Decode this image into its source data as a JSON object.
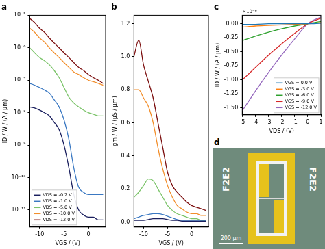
{
  "chart_data": [
    {
      "type": "line",
      "title": "a",
      "xlabel": "VGS / (V)",
      "ylabel": "ID / W / (A / μm)",
      "log": "y",
      "grid": false,
      "legend": "lower left",
      "xlim": [
        -12,
        3.5
      ],
      "xticks": [
        -10,
        -5,
        0
      ],
      "ylim": [
        3e-12,
        1e-05
      ],
      "yticks": [
        {
          "value": 1e-11,
          "label": "10⁻¹¹"
        },
        {
          "value": 1e-10,
          "label": "10⁻¹⁰"
        },
        {
          "value": 1e-09,
          "label": "10⁻⁹"
        },
        {
          "value": 1e-08,
          "label": "10⁻⁸"
        },
        {
          "value": 1e-07,
          "label": "10⁻⁷"
        },
        {
          "value": 1e-06,
          "label": "10⁻⁶"
        },
        {
          "value": 1e-05,
          "label": "10⁻⁵"
        }
      ],
      "x": [
        -12,
        -11,
        -10,
        -9,
        -8,
        -7,
        -6,
        -5,
        -4,
        -3,
        -2,
        -1,
        0,
        1,
        2,
        3
      ],
      "series": [
        {
          "name": "VDS = -0.2 V",
          "color": "#1a1f5e",
          "values": [
            1.5e-08,
            1.4e-08,
            1.2e-08,
            1e-08,
            8e-09,
            5e-09,
            3e-09,
            1e-09,
            2e-10,
            3e-11,
            1e-11,
            7e-12,
            6e-12,
            6e-12,
            5e-12,
            5e-12
          ]
        },
        {
          "name": "VDS = -1.0 V",
          "color": "#3a78c2",
          "values": [
            8e-08,
            7e-08,
            6e-08,
            5e-08,
            4e-08,
            2.5e-08,
            1.5e-08,
            6e-09,
            1.5e-09,
            2e-10,
            5e-11,
            3.5e-11,
            3e-11,
            3e-11,
            3e-11,
            3e-11
          ]
        },
        {
          "name": "VDS = -5.0 V",
          "color": "#7cc46a",
          "values": [
            1e-06,
            7e-07,
            5e-07,
            4e-07,
            3e-07,
            2e-07,
            1.2e-07,
            6e-08,
            3e-08,
            2e-08,
            1.5e-08,
            1.2e-08,
            1e-08,
            9e-09,
            8e-09,
            8e-09
          ]
        },
        {
          "name": "VDS = -10.0 V",
          "color": "#f28e2b",
          "values": [
            4e-06,
            3e-06,
            2e-06,
            1.5e-06,
            1e-06,
            7e-07,
            5e-07,
            3.5e-07,
            2.5e-07,
            1.8e-07,
            1.5e-07,
            1.2e-07,
            1e-07,
            9e-08,
            8e-08,
            7e-08
          ]
        },
        {
          "name": "VDS = -12.0 V",
          "color": "#7b0d0d",
          "values": [
            8e-06,
            6e-06,
            4e-06,
            3e-06,
            2e-06,
            1.4e-06,
            1e-06,
            7e-07,
            5e-07,
            3.5e-07,
            2.5e-07,
            2e-07,
            1.5e-07,
            1.2e-07,
            1e-07,
            8e-08
          ]
        }
      ]
    },
    {
      "type": "line",
      "title": "b",
      "xlabel": "VGS / (V)",
      "ylabel": "gm / W / (μS / μm)",
      "grid": false,
      "xlim": [
        -12,
        3.5
      ],
      "xticks": [
        -10,
        -5,
        0
      ],
      "ylim": [
        -0.03,
        1.25
      ],
      "yticks": [
        {
          "value": 0,
          "label": "0.0"
        },
        {
          "value": 0.2,
          "label": "0.2"
        },
        {
          "value": 0.4,
          "label": "0.4"
        },
        {
          "value": 0.6,
          "label": "0.6"
        },
        {
          "value": 0.8,
          "label": "0.8"
        },
        {
          "value": 1.0,
          "label": "1.0"
        },
        {
          "value": 1.2,
          "label": "1.2"
        }
      ],
      "x": [
        -12,
        -11,
        -10,
        -9,
        -8,
        -7,
        -6,
        -5,
        -4,
        -3,
        -2,
        -1,
        0,
        1,
        2,
        3
      ],
      "series": [
        {
          "name": "VDS = -0.2 V",
          "color": "#1a1f5e",
          "values": [
            0.01,
            0.01,
            0.01,
            0.015,
            0.02,
            0.02,
            0.02,
            0.015,
            0.01,
            0.01,
            0.005,
            0.005,
            0.005,
            0.005,
            0.005,
            0.005
          ]
        },
        {
          "name": "VDS = -1.0 V",
          "color": "#3a78c2",
          "values": [
            0.02,
            0.03,
            0.04,
            0.045,
            0.05,
            0.05,
            0.045,
            0.035,
            0.025,
            0.015,
            0.01,
            0.01,
            0.01,
            0.01,
            0.01,
            0.01
          ]
        },
        {
          "name": "VDS = -5.0 V",
          "color": "#7cc46a",
          "values": [
            0.15,
            0.18,
            0.22,
            0.26,
            0.25,
            0.2,
            0.15,
            0.1,
            0.07,
            0.05,
            0.04,
            0.03,
            0.02,
            0.02,
            0.01,
            0.01
          ]
        },
        {
          "name": "VDS = -10.0 V",
          "color": "#f28e2b",
          "values": [
            0.8,
            0.8,
            0.75,
            0.7,
            0.6,
            0.45,
            0.32,
            0.22,
            0.15,
            0.1,
            0.08,
            0.06,
            0.05,
            0.05,
            0.04,
            0.04
          ]
        },
        {
          "name": "VDS = -12.0 V",
          "color": "#7b0d0d",
          "values": [
            1.0,
            1.1,
            0.95,
            0.85,
            0.75,
            0.6,
            0.45,
            0.3,
            0.22,
            0.18,
            0.15,
            0.12,
            0.1,
            0.09,
            0.08,
            0.07
          ]
        }
      ]
    },
    {
      "type": "line",
      "title": "c",
      "xlabel": "VDS / (V)",
      "ylabel": "ID / W / (A / μm)",
      "annotations": [
        "×10⁻⁶"
      ],
      "grid": false,
      "legend": "lower right",
      "xlim": [
        -5,
        1
      ],
      "xticks": [
        -5,
        -4,
        -3,
        -2,
        -1,
        0,
        1
      ],
      "ylim": [
        -1.62,
        0.15
      ],
      "yticks": [
        {
          "value": -1.5,
          "label": "-1.50"
        },
        {
          "value": -1.25,
          "label": "-1.25"
        },
        {
          "value": -1.0,
          "label": "-1.00"
        },
        {
          "value": -0.75,
          "label": "-0.75"
        },
        {
          "value": -0.5,
          "label": "-0.50"
        },
        {
          "value": -0.25,
          "label": "-0.25"
        },
        {
          "value": 0,
          "label": "0.00"
        }
      ],
      "x": [
        -5,
        -4,
        -3,
        -2,
        -1,
        0,
        1
      ],
      "series": [
        {
          "name": "VGS = 0.0 V",
          "color": "#1f77b4",
          "values": [
            -0.01,
            -0.01,
            0,
            0,
            0,
            0,
            0.01
          ]
        },
        {
          "name": "VGS = -3.0 V",
          "color": "#ff7f0e",
          "values": [
            -0.06,
            -0.04,
            -0.03,
            -0.02,
            -0.01,
            0,
            0.02
          ]
        },
        {
          "name": "VGS = -6.0 V",
          "color": "#2ca02c",
          "values": [
            -0.3,
            -0.22,
            -0.15,
            -0.09,
            -0.04,
            0,
            0.04
          ]
        },
        {
          "name": "VGS = -9.0 V",
          "color": "#d62728",
          "values": [
            -1.0,
            -0.78,
            -0.56,
            -0.36,
            -0.17,
            0,
            0.1
          ]
        },
        {
          "name": "VGS = -12.0 V",
          "color": "#9467bd",
          "values": [
            -1.55,
            -1.2,
            -0.87,
            -0.56,
            -0.27,
            0,
            0.12
          ]
        }
      ]
    }
  ],
  "image": {
    "title": "d",
    "labels": [
      "F2E2",
      "F2E2"
    ],
    "scale_bar": "200 μm"
  }
}
